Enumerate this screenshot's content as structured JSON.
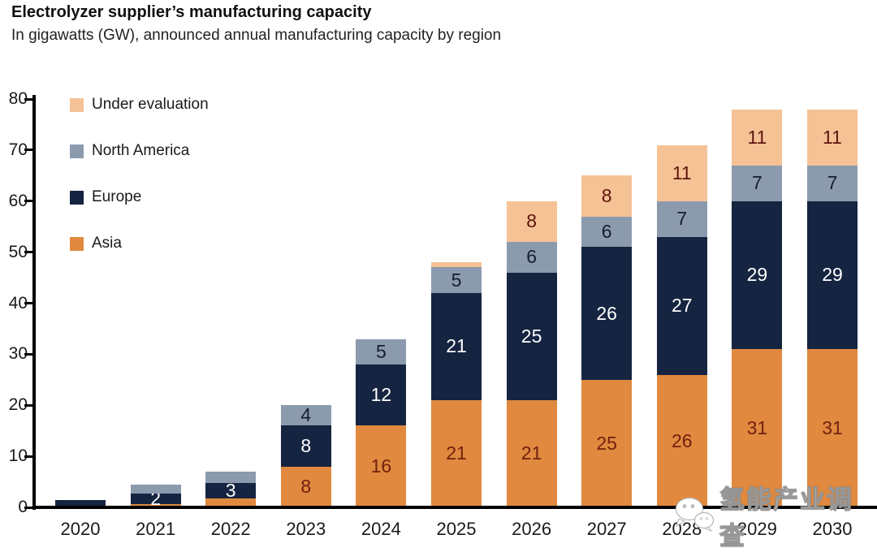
{
  "header": {
    "title": "Electrolyzer supplier’s manufacturing capacity",
    "subtitle": "In gigawatts (GW), announced annual manufacturing capacity by region"
  },
  "legend": [
    {
      "label": "Under evaluation",
      "color": "#F5C296"
    },
    {
      "label": "North America",
      "color": "#8C9AAE"
    },
    {
      "label": "Europe",
      "color": "#152440"
    },
    {
      "label": "Asia",
      "color": "#E0893F"
    }
  ],
  "colors": {
    "axis": "#000000",
    "background": "#ffffff"
  },
  "watermark": {
    "icon": "wechat-icon",
    "text": "氢能产业调查"
  },
  "chart_data": {
    "type": "bar",
    "stacked": true,
    "title": "Electrolyzer supplier’s manufacturing capacity",
    "subtitle": "In gigawatts (GW), announced annual manufacturing capacity by region",
    "xlabel": "",
    "ylabel": "",
    "ylim": [
      0,
      80
    ],
    "yticks": [
      0,
      10,
      20,
      30,
      40,
      50,
      60,
      70,
      80
    ],
    "grid": false,
    "legend_position": "top-left",
    "categories": [
      "2020",
      "2021",
      "2022",
      "2023",
      "2024",
      "2025",
      "2026",
      "2027",
      "2028",
      "2029",
      "2030"
    ],
    "series": [
      {
        "name": "Asia",
        "color": "#E0893F",
        "label_color": "#72200f",
        "values": [
          0,
          0.7,
          1.7,
          8,
          16,
          21,
          21,
          25,
          26,
          31,
          31
        ],
        "labels": [
          "",
          "",
          "",
          "8",
          "16",
          "21",
          "21",
          "25",
          "26",
          "31",
          "31"
        ]
      },
      {
        "name": "Europe",
        "color": "#152440",
        "label_color": "#ffffff",
        "values": [
          1.5,
          2,
          3,
          8,
          12,
          21,
          25,
          26,
          27,
          29,
          29
        ],
        "labels": [
          "",
          "2",
          "3",
          "8",
          "12",
          "21",
          "25",
          "26",
          "27",
          "29",
          "29"
        ]
      },
      {
        "name": "North America",
        "color": "#8C9AAE",
        "label_color": "#141d33",
        "values": [
          0,
          1.8,
          2.3,
          4,
          5,
          5,
          6,
          6,
          7,
          7,
          7
        ],
        "labels": [
          "",
          "",
          "",
          "4",
          "5",
          "5",
          "6",
          "6",
          "7",
          "7",
          "7"
        ]
      },
      {
        "name": "Under evaluation",
        "color": "#F5C296",
        "label_color": "#5e150d",
        "values": [
          0,
          0,
          0,
          0,
          0,
          1,
          8,
          8,
          11,
          11,
          11
        ],
        "labels": [
          "",
          "",
          "",
          "",
          "",
          "",
          "8",
          "8",
          "11",
          "11",
          "11"
        ]
      }
    ]
  }
}
